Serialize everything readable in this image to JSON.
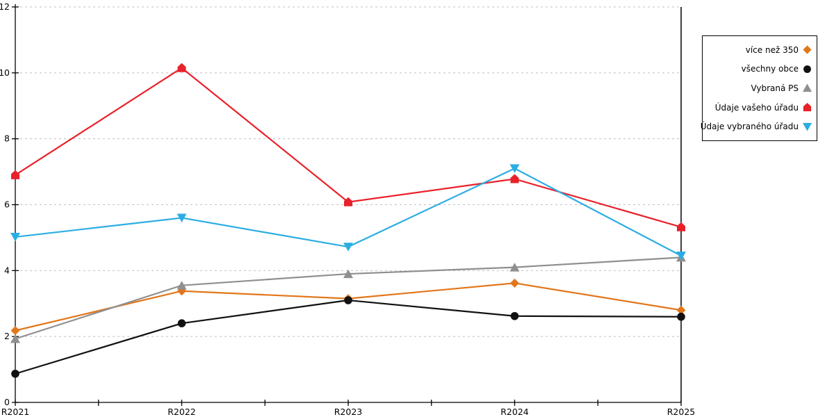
{
  "chart_data": {
    "type": "line",
    "categories": [
      "R2021",
      "R2022",
      "R2023",
      "R2024",
      "R2025"
    ],
    "series": [
      {
        "name": "více než 350",
        "color": "#E2761B",
        "marker": "diamond",
        "values": [
          2.18,
          3.38,
          3.15,
          3.62,
          2.8
        ]
      },
      {
        "name": "všechny obce",
        "color": "#111111",
        "marker": "circle",
        "values": [
          0.87,
          2.4,
          3.1,
          2.62,
          2.6
        ]
      },
      {
        "name": "Vybraná PS",
        "color": "#8F8F8F",
        "marker": "triangle-up",
        "values": [
          1.93,
          3.55,
          3.9,
          4.1,
          4.4
        ]
      },
      {
        "name": "Údaje vašeho úřadu",
        "color": "#E8212B",
        "marker": "house",
        "values": [
          6.9,
          10.15,
          6.08,
          6.78,
          5.32
        ]
      },
      {
        "name": "Údaje vybraného úřadu",
        "color": "#2BADE3",
        "marker": "triangle-down",
        "values": [
          5.02,
          5.6,
          4.72,
          7.1,
          4.45
        ]
      }
    ],
    "title": "",
    "xlabel": "",
    "ylabel": "",
    "ylim": [
      0,
      12
    ],
    "ytick_step": 2,
    "ytick_labels": [
      "0",
      "2",
      "4",
      "6",
      "8",
      "10",
      "12"
    ],
    "grid": "horizontal-dashed",
    "gridline_color": "#BFBFBF",
    "axis_color": "#000000",
    "legend_position": "right",
    "legend_entries": [
      "více než 350",
      "všechny obce",
      "Vybraná PS",
      "Údaje vašeho úřadu",
      "Údaje vybraného úřadu"
    ]
  }
}
